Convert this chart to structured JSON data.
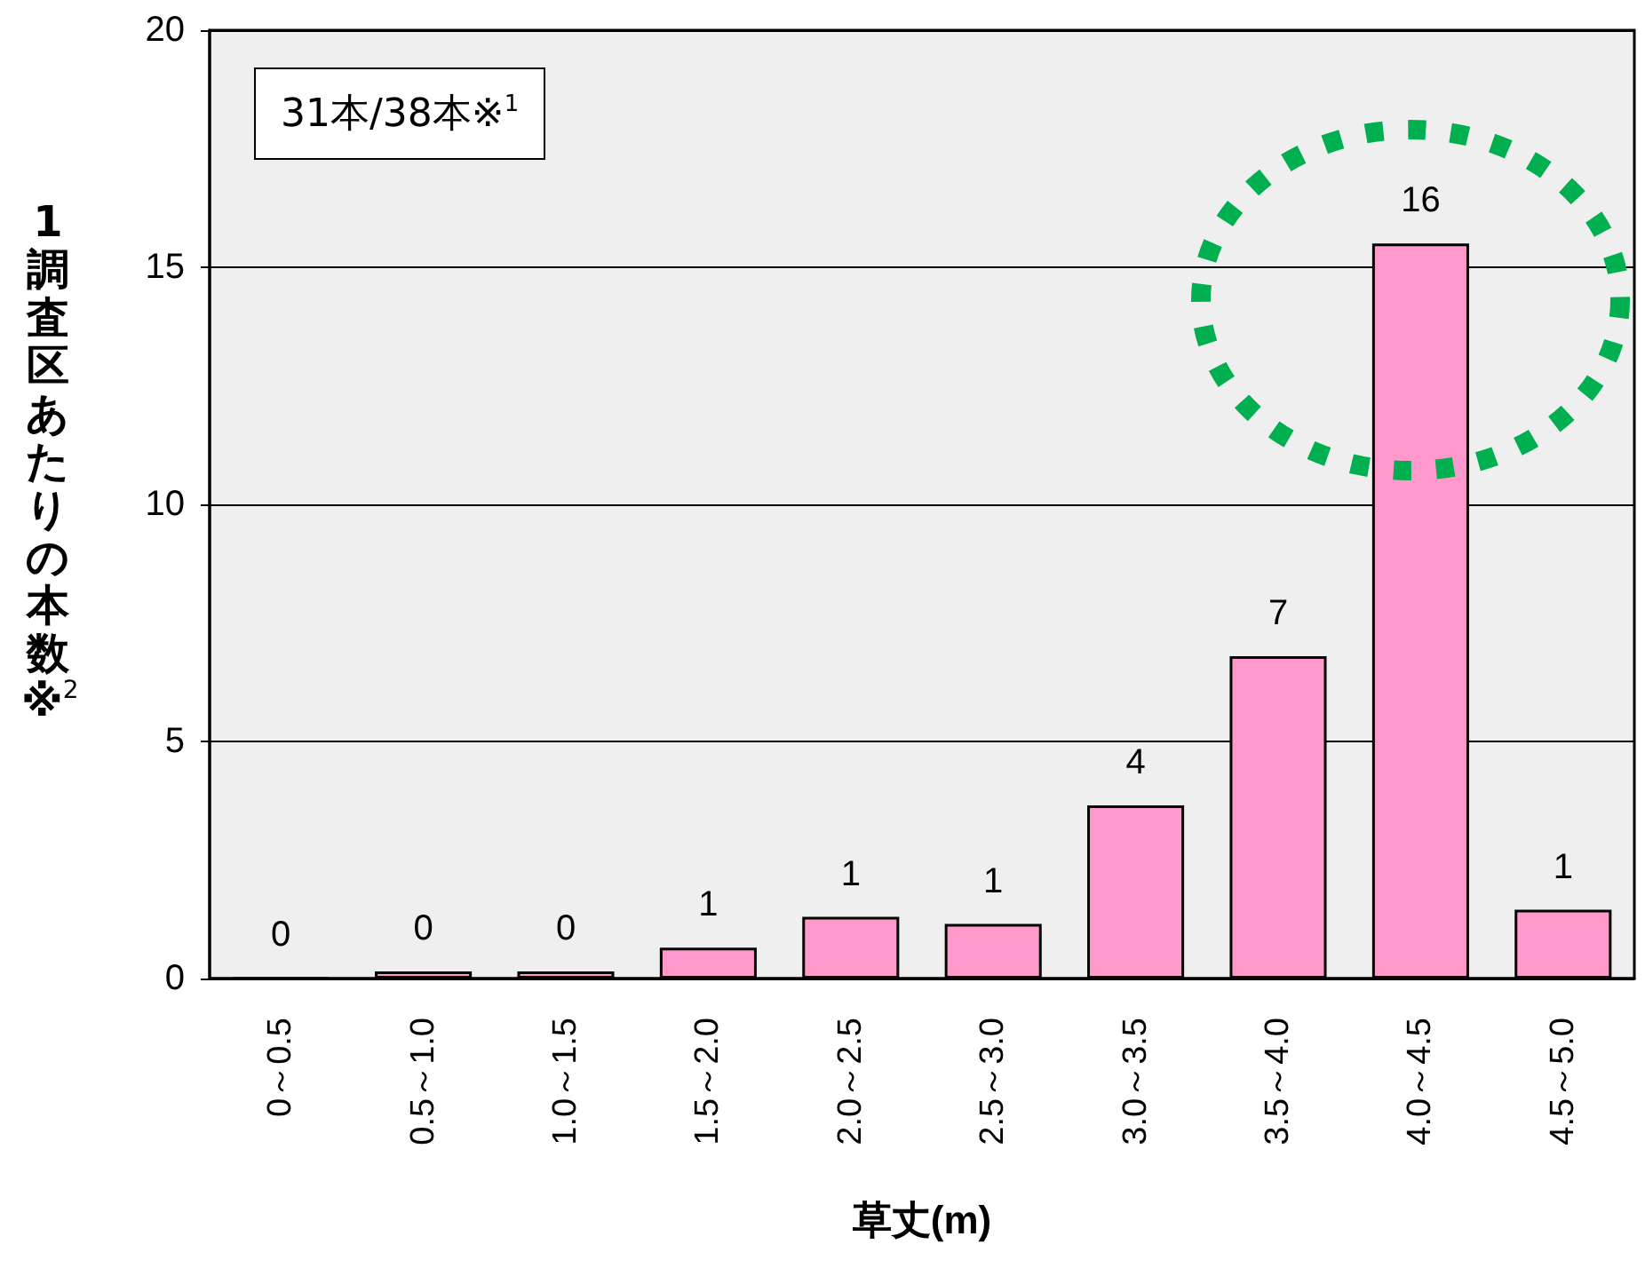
{
  "chart_data": {
    "type": "bar",
    "xlabel": "草丈(m)",
    "ylabel": "1調査区あたりの本数※$^{2}$",
    "annotations": [
      "31本/38本※$^{1}$"
    ],
    "categories": [
      "0～0.5",
      "0.5～1.0",
      "1.0～1.5",
      "1.5～2.0",
      "2.0～2.5",
      "2.5～3.0",
      "3.0～3.5",
      "3.5～4.0",
      "4.0～4.5",
      "4.5～5.0"
    ],
    "values": [
      0,
      0.15,
      0.15,
      0.65,
      1.3,
      1.15,
      3.65,
      6.8,
      15.5,
      1.45
    ],
    "value_labels": [
      "0",
      "0",
      "0",
      "1",
      "1",
      "1",
      "4",
      "7",
      "16",
      "1"
    ],
    "color": "#ff99cc",
    "ylim": [
      0,
      20
    ],
    "yticks": [
      0,
      5,
      10,
      15,
      20
    ],
    "grid": "y"
  }
}
